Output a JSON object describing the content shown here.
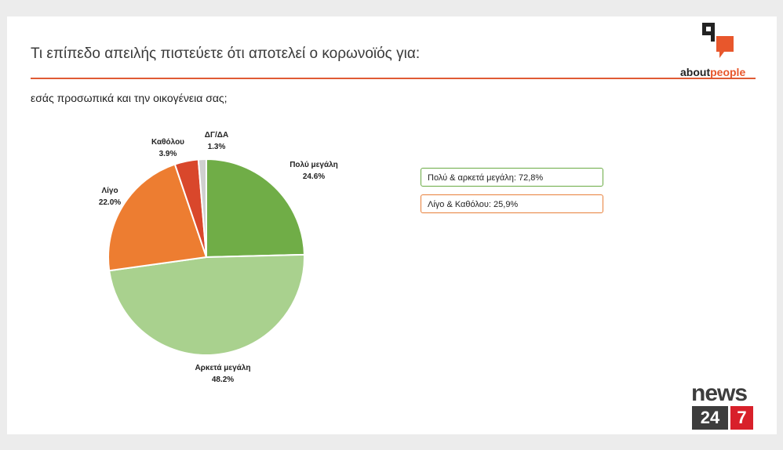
{
  "header": {
    "title": "Τι επίπεδο απειλής πιστεύετε ότι αποτελεί ο κορωνοϊός για:",
    "subtitle": "εσάς προσωπικά και την οικογένεια σας;"
  },
  "brand": {
    "name_part1": "about",
    "name_part2": "people",
    "accent_color": "#e8572c"
  },
  "summary": {
    "high": "Πολύ & αρκετά μεγάλη: 72,8%",
    "low": "Λίγο & Καθόλου: 25,9%"
  },
  "footer_logo": {
    "word": "news",
    "number": "24",
    "number2": "7"
  },
  "chart_data": {
    "type": "pie",
    "categories": [
      "Πολύ μεγάλη",
      "Αρκετά μεγάλη",
      "Λίγο",
      "Καθόλου",
      "ΔΓ/ΔΑ"
    ],
    "values": [
      24.6,
      48.2,
      22.0,
      3.9,
      1.3
    ],
    "value_labels": [
      "24.6%",
      "48.2%",
      "22.0%",
      "3.9%",
      "1.3%"
    ],
    "colors": [
      "#70ad47",
      "#a9d18e",
      "#ed7d31",
      "#d9472b",
      "#d0d0d0"
    ],
    "start": "12 o'clock, clockwise"
  }
}
